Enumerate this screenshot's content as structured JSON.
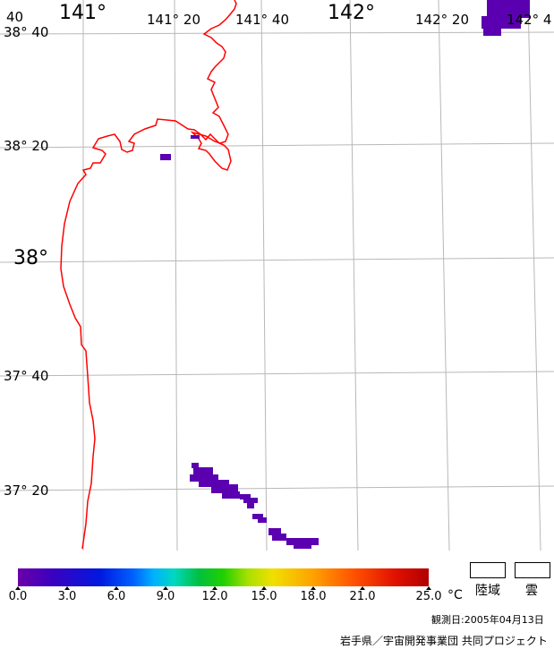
{
  "map": {
    "lon_labels": [
      {
        "text": "141°",
        "size": "big"
      },
      {
        "text": "141° 20",
        "size": "sm"
      },
      {
        "text": "141° 40",
        "size": "sm"
      },
      {
        "text": "142°",
        "size": "big"
      },
      {
        "text": "142° 20",
        "size": "sm"
      },
      {
        "text": "142° 4",
        "size": "sm"
      }
    ],
    "lat_labels": [
      {
        "text": "40",
        "size": "sm"
      },
      {
        "text": "38° 40",
        "size": "sm"
      },
      {
        "text": "38° 20",
        "size": "sm"
      },
      {
        "text": "38°",
        "size": "big"
      },
      {
        "text": "37° 40",
        "size": "sm"
      },
      {
        "text": "37° 20",
        "size": "sm"
      }
    ],
    "colors": {
      "coast": "#ff0000",
      "grid": "#b8b8b8",
      "patch": "#5a00b0"
    }
  },
  "colorbar": {
    "ticks": [
      "0.0",
      "3.0",
      "6.0",
      "9.0",
      "12.0",
      "15.0",
      "18.0",
      "21.0",
      "25.0"
    ],
    "unit": "°C"
  },
  "legend": {
    "land": "陸域",
    "cloud": "雲"
  },
  "footer": {
    "observation": "観測日:2005年04月13日",
    "credit": "岩手県／宇宙開発事業団 共同プロジェクト"
  }
}
